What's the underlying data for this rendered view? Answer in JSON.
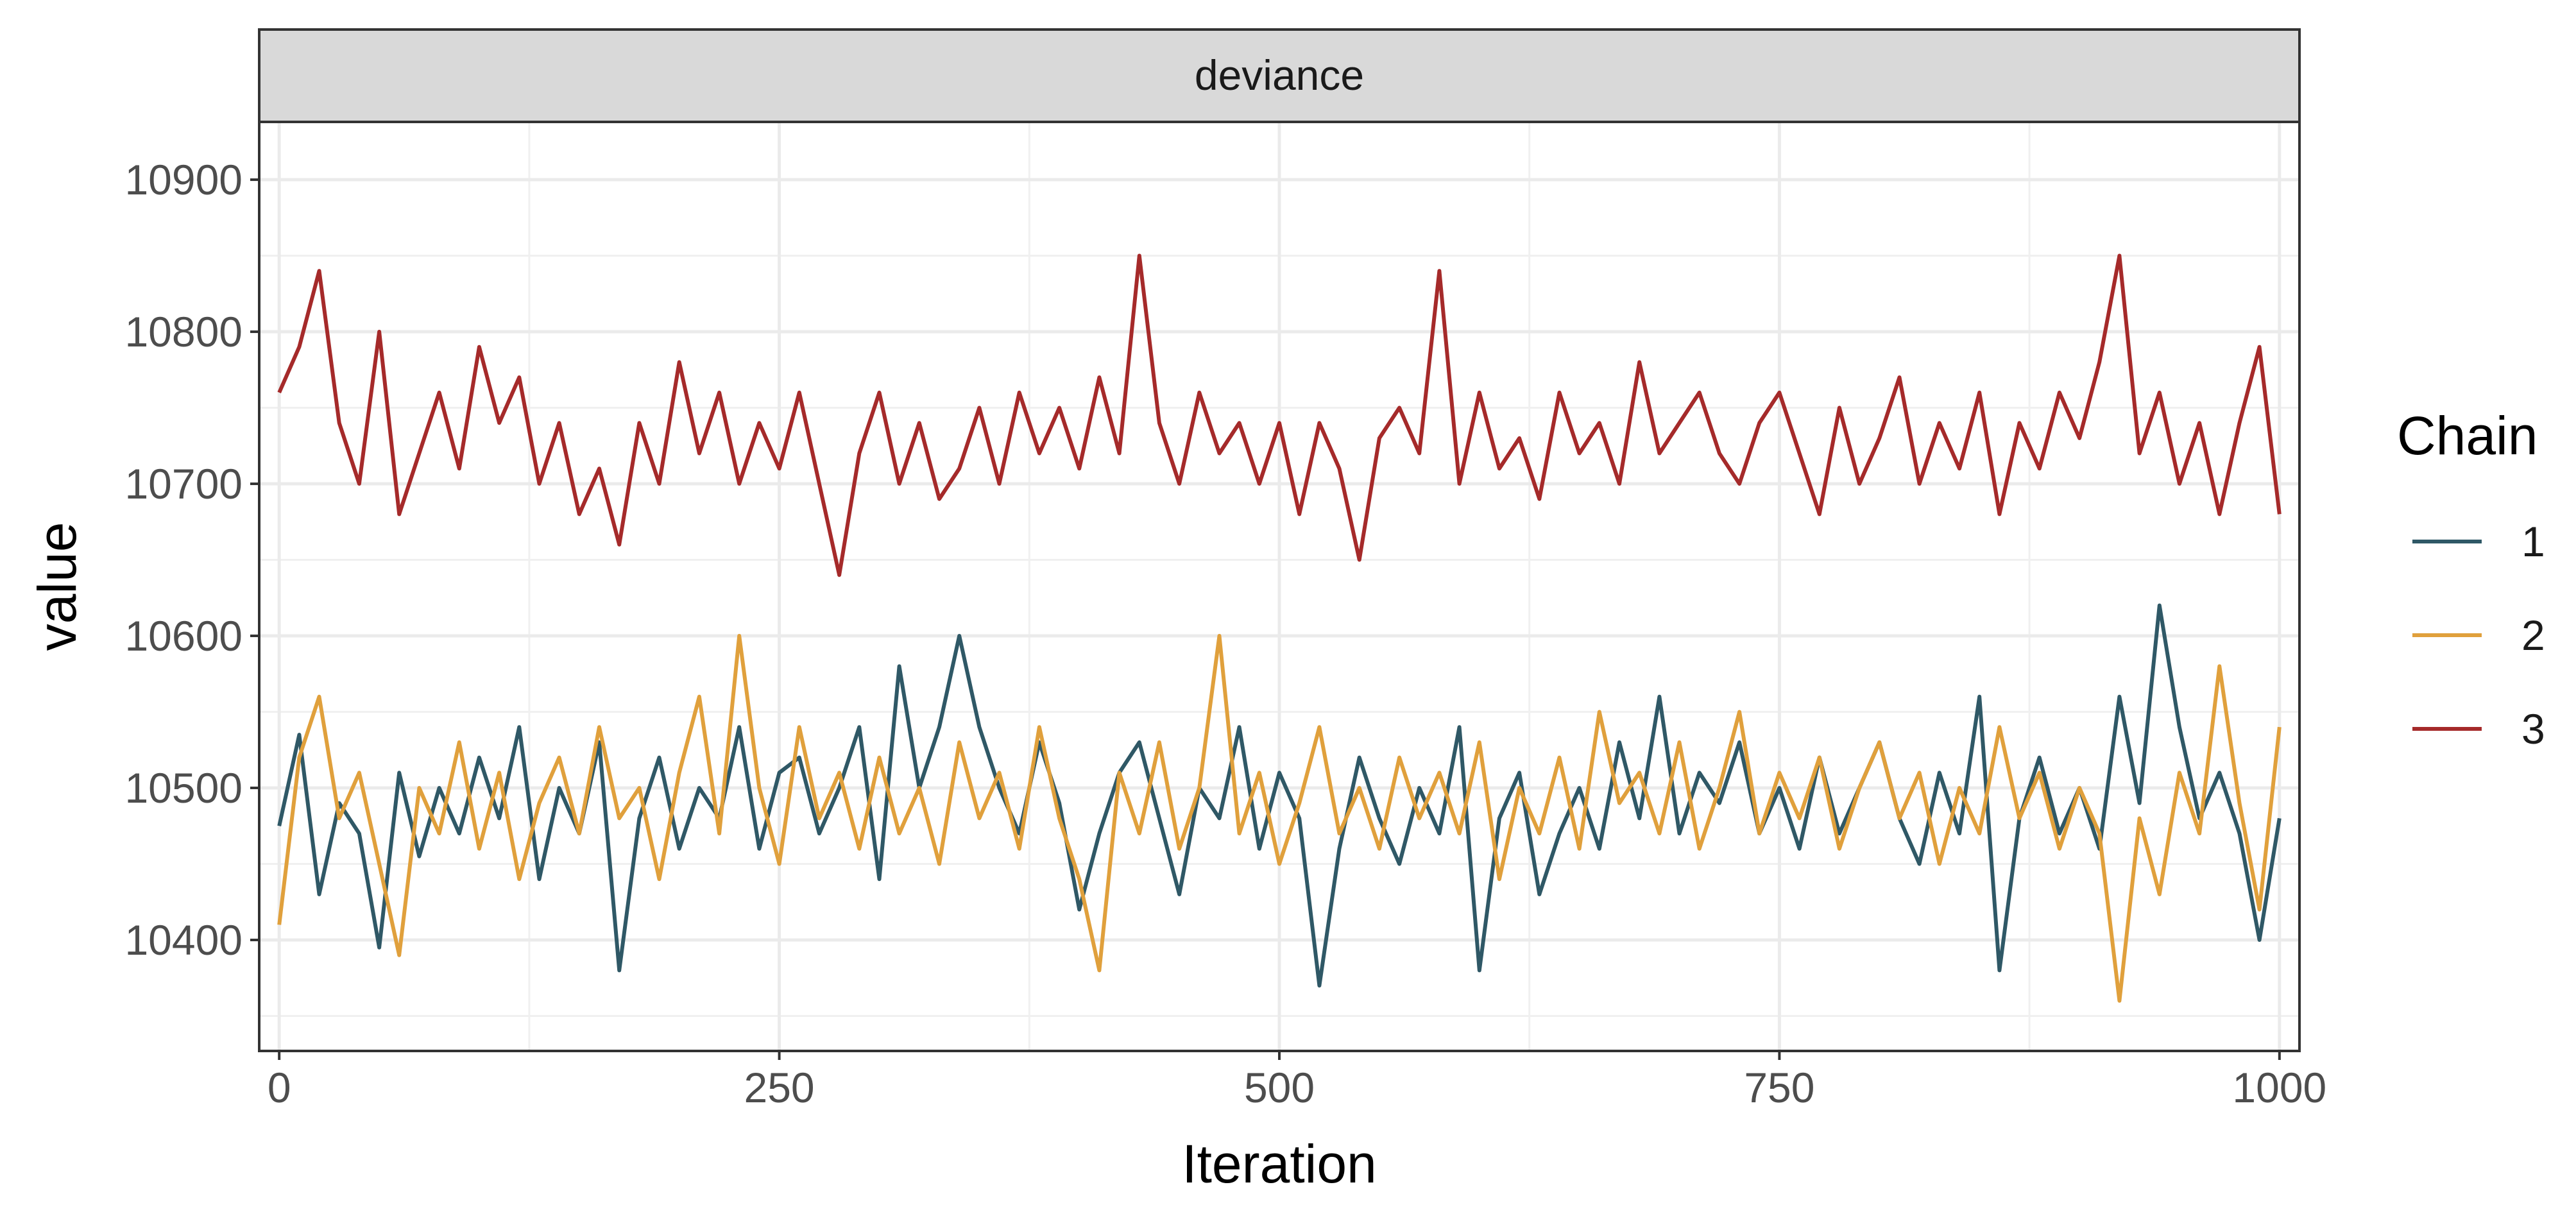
{
  "chart_data": {
    "type": "line",
    "facet": "deviance",
    "xlabel": "Iteration",
    "ylabel": "value",
    "xlim": [
      -10,
      1010
    ],
    "ylim": [
      10327,
      10938
    ],
    "x_ticks": [
      0,
      250,
      500,
      750,
      1000
    ],
    "x_tick_labels": [
      "0",
      "250",
      "500",
      "750",
      "1000"
    ],
    "y_ticks": [
      10400,
      10500,
      10600,
      10700,
      10800,
      10900
    ],
    "y_tick_labels": [
      "10400",
      "10500",
      "10600",
      "10700",
      "10800",
      "10900"
    ],
    "grid": true,
    "legend_title": "Chain",
    "legend_position": "right",
    "series": [
      {
        "name": "1",
        "color": "#2f5866",
        "x": [
          0,
          10,
          20,
          30,
          40,
          50,
          60,
          70,
          80,
          90,
          100,
          110,
          120,
          130,
          140,
          150,
          160,
          170,
          180,
          190,
          200,
          210,
          220,
          230,
          240,
          250,
          260,
          270,
          280,
          290,
          300,
          310,
          320,
          330,
          340,
          350,
          360,
          370,
          380,
          390,
          400,
          410,
          420,
          430,
          440,
          450,
          460,
          470,
          480,
          490,
          500,
          510,
          520,
          530,
          540,
          550,
          560,
          570,
          580,
          590,
          600,
          610,
          620,
          630,
          640,
          650,
          660,
          670,
          680,
          690,
          700,
          710,
          720,
          730,
          740,
          750,
          760,
          770,
          780,
          790,
          800,
          810,
          820,
          830,
          840,
          850,
          860,
          870,
          880,
          890,
          900,
          910,
          920,
          930,
          940,
          950,
          960,
          970,
          980,
          990,
          1000
        ],
        "values": [
          10475,
          10535,
          10430,
          10490,
          10470,
          10395,
          10510,
          10455,
          10500,
          10470,
          10520,
          10480,
          10540,
          10440,
          10500,
          10470,
          10530,
          10380,
          10480,
          10520,
          10460,
          10500,
          10480,
          10540,
          10460,
          10510,
          10520,
          10470,
          10500,
          10540,
          10440,
          10580,
          10500,
          10540,
          10600,
          10540,
          10500,
          10470,
          10530,
          10490,
          10420,
          10470,
          10510,
          10530,
          10480,
          10430,
          10500,
          10480,
          10540,
          10460,
          10510,
          10480,
          10370,
          10460,
          10520,
          10480,
          10450,
          10500,
          10470,
          10540,
          10380,
          10480,
          10510,
          10430,
          10470,
          10500,
          10460,
          10530,
          10480,
          10560,
          10470,
          10510,
          10490,
          10530,
          10470,
          10500,
          10460,
          10520,
          10470,
          10500,
          10530,
          10480,
          10450,
          10510,
          10470,
          10560,
          10380,
          10480,
          10520,
          10470,
          10500,
          10460,
          10560,
          10490,
          10620,
          10540,
          10480,
          10510,
          10470,
          10400,
          10480
        ]
      },
      {
        "name": "2",
        "color": "#e0a03c",
        "x": [
          0,
          10,
          20,
          30,
          40,
          50,
          60,
          70,
          80,
          90,
          100,
          110,
          120,
          130,
          140,
          150,
          160,
          170,
          180,
          190,
          200,
          210,
          220,
          230,
          240,
          250,
          260,
          270,
          280,
          290,
          300,
          310,
          320,
          330,
          340,
          350,
          360,
          370,
          380,
          390,
          400,
          410,
          420,
          430,
          440,
          450,
          460,
          470,
          480,
          490,
          500,
          510,
          520,
          530,
          540,
          550,
          560,
          570,
          580,
          590,
          600,
          610,
          620,
          630,
          640,
          650,
          660,
          670,
          680,
          690,
          700,
          710,
          720,
          730,
          740,
          750,
          760,
          770,
          780,
          790,
          800,
          810,
          820,
          830,
          840,
          850,
          860,
          870,
          880,
          890,
          900,
          910,
          920,
          930,
          940,
          950,
          960,
          970,
          980,
          990,
          1000
        ],
        "values": [
          10410,
          10520,
          10560,
          10480,
          10510,
          10450,
          10390,
          10500,
          10470,
          10530,
          10460,
          10510,
          10440,
          10490,
          10520,
          10470,
          10540,
          10480,
          10500,
          10440,
          10510,
          10560,
          10470,
          10600,
          10500,
          10450,
          10540,
          10480,
          10510,
          10460,
          10520,
          10470,
          10500,
          10450,
          10530,
          10480,
          10510,
          10460,
          10540,
          10480,
          10440,
          10380,
          10510,
          10470,
          10530,
          10460,
          10500,
          10600,
          10470,
          10510,
          10450,
          10490,
          10540,
          10470,
          10500,
          10460,
          10520,
          10480,
          10510,
          10470,
          10530,
          10440,
          10500,
          10470,
          10520,
          10460,
          10550,
          10490,
          10510,
          10470,
          10530,
          10460,
          10500,
          10550,
          10470,
          10510,
          10480,
          10520,
          10460,
          10500,
          10530,
          10480,
          10510,
          10450,
          10500,
          10470,
          10540,
          10480,
          10510,
          10460,
          10500,
          10470,
          10360,
          10480,
          10430,
          10510,
          10470,
          10580,
          10490,
          10420,
          10540
        ]
      },
      {
        "name": "3",
        "color": "#a52a2a",
        "x": [
          0,
          10,
          20,
          30,
          40,
          50,
          60,
          70,
          80,
          90,
          100,
          110,
          120,
          130,
          140,
          150,
          160,
          170,
          180,
          190,
          200,
          210,
          220,
          230,
          240,
          250,
          260,
          270,
          280,
          290,
          300,
          310,
          320,
          330,
          340,
          350,
          360,
          370,
          380,
          390,
          400,
          410,
          420,
          430,
          440,
          450,
          460,
          470,
          480,
          490,
          500,
          510,
          520,
          530,
          540,
          550,
          560,
          570,
          580,
          590,
          600,
          610,
          620,
          630,
          640,
          650,
          660,
          670,
          680,
          690,
          700,
          710,
          720,
          730,
          740,
          750,
          760,
          770,
          780,
          790,
          800,
          810,
          820,
          830,
          840,
          850,
          860,
          870,
          880,
          890,
          900,
          910,
          920,
          930,
          940,
          950,
          960,
          970,
          980,
          990,
          1000
        ],
        "values": [
          10760,
          10790,
          10840,
          10740,
          10700,
          10800,
          10680,
          10720,
          10760,
          10710,
          10790,
          10740,
          10770,
          10700,
          10740,
          10680,
          10710,
          10660,
          10740,
          10700,
          10780,
          10720,
          10760,
          10700,
          10740,
          10710,
          10760,
          10700,
          10640,
          10720,
          10760,
          10700,
          10740,
          10690,
          10710,
          10750,
          10700,
          10760,
          10720,
          10750,
          10710,
          10770,
          10720,
          10850,
          10740,
          10700,
          10760,
          10720,
          10740,
          10700,
          10740,
          10680,
          10740,
          10710,
          10650,
          10730,
          10750,
          10720,
          10840,
          10700,
          10760,
          10710,
          10730,
          10690,
          10760,
          10720,
          10740,
          10700,
          10780,
          10720,
          10740,
          10760,
          10720,
          10700,
          10740,
          10760,
          10720,
          10680,
          10750,
          10700,
          10730,
          10770,
          10700,
          10740,
          10710,
          10760,
          10680,
          10740,
          10710,
          10760,
          10730,
          10780,
          10850,
          10720,
          10760,
          10700,
          10740,
          10680,
          10740,
          10790,
          10680
        ]
      }
    ]
  }
}
